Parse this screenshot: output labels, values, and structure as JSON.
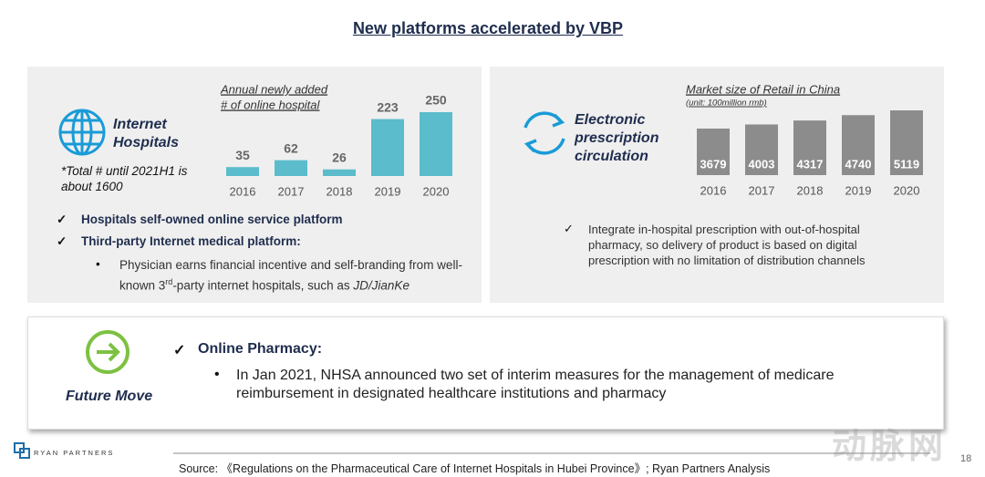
{
  "title": "New platforms accelerated by VBP",
  "left_panel": {
    "heading": "Internet Hospitals",
    "note": "*Total # until 2021H1 is about 1600",
    "bullets": [
      "Hospitals self-owned online service platform",
      "Third-party Internet medical platform:"
    ],
    "sub_bullet": [
      "Physician earns financial incentive and self-branding from well-known 3",
      "rd",
      "-party internet hospitals, such as ",
      "JD/JianKe"
    ]
  },
  "right_panel": {
    "heading": "Electronic prescription circulation",
    "bullet": "Integrate in-hospital prescription with out-of-hospital pharmacy, so delivery of product is based on digital prescription with no limitation of distribution channels"
  },
  "chart_data": [
    {
      "type": "bar",
      "title": [
        "Annual newly added",
        "# of online hospital"
      ],
      "categories": [
        "2016",
        "2017",
        "2018",
        "2019",
        "2020"
      ],
      "values": [
        35,
        62,
        26,
        223,
        250
      ],
      "color": "#5bbccb"
    },
    {
      "type": "bar",
      "title": [
        "Market size of Retail in China"
      ],
      "subtitle": "(unit: 100million rmb)",
      "categories": [
        "2016",
        "2017",
        "2018",
        "2019",
        "2020"
      ],
      "values": [
        3679,
        4003,
        4317,
        4740,
        5119
      ],
      "color": "#8c8c8c"
    }
  ],
  "bottom_panel": {
    "label": "Future Move",
    "heading": "Online Pharmacy:",
    "bullet": "In Jan 2021, NHSA announced two set of interim measures for the management of medicare reimbursement in designated healthcare institutions and pharmacy"
  },
  "footer": {
    "logo": "RYAN PARTNERS",
    "source": "Source: 《Regulations on the Pharmaceutical Care of Internet Hospitals in Hubei Province》; Ryan Partners Analysis",
    "page": "18",
    "watermark": "动脉网"
  }
}
